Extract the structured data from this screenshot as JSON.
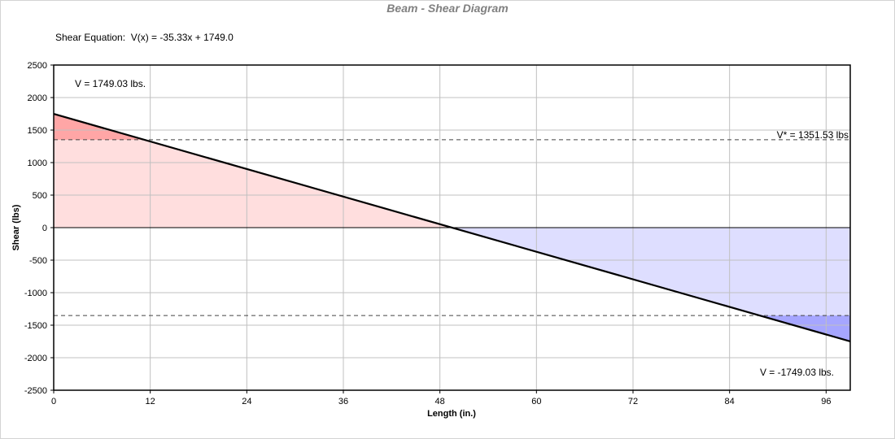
{
  "chart_data": {
    "type": "area",
    "title": "Beam - Shear Diagram",
    "subtitle": "Shear Equation:  V(x) = -35.33x + 1749.0",
    "xlabel": "Length (in.)",
    "ylabel": "Shear (lbs)",
    "xlim": [
      0,
      99
    ],
    "ylim": [
      -2500,
      2500
    ],
    "xticks": [
      0,
      12,
      24,
      36,
      48,
      60,
      72,
      84,
      96
    ],
    "yticks": [
      2500,
      2000,
      1500,
      1000,
      500,
      0,
      -500,
      -1000,
      -1500,
      -2000,
      -2500
    ],
    "grid": true,
    "shear_line": {
      "x": [
        0,
        99
      ],
      "y": [
        1749.03,
        -1749.03
      ]
    },
    "allowable_shear": 1351.53,
    "annotations": {
      "v_max": "V = 1749.03 lbs.",
      "v_min": "V = -1749.03 lbs.",
      "v_star": "V* = 1351.53 lbs"
    },
    "colors": {
      "positive_fill": "#ffdede",
      "positive_exceed": "#ffa6a6",
      "negative_fill": "#dedeff",
      "negative_exceed": "#a6a6ff",
      "line": "#000000",
      "grid": "#c0c0c0",
      "title": "#808080"
    }
  }
}
